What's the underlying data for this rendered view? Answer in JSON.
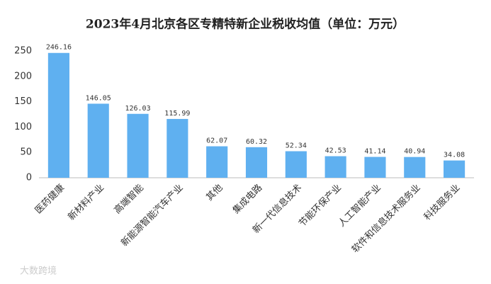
{
  "chart_data": {
    "type": "bar",
    "title": "2023年4月北京各区专精特新企业税收均值（单位：万元）",
    "categories": [
      "医药健康",
      "新材料产业",
      "高端智能",
      "新能源智能汽车产业",
      "其他",
      "集成电路",
      "新一代信息技术",
      "节能环保产业",
      "人工智能产业",
      "软件和信息技术服务业",
      "科技服务业"
    ],
    "values": [
      246.16,
      146.05,
      126.03,
      115.99,
      62.07,
      60.32,
      52.34,
      42.53,
      41.14,
      40.94,
      34.08
    ],
    "color": "#5fb0f0",
    "ylim": [
      0,
      250
    ],
    "yticks": [
      0,
      50,
      100,
      150,
      200,
      250
    ],
    "grid": false,
    "annotation": "大数跨境"
  }
}
